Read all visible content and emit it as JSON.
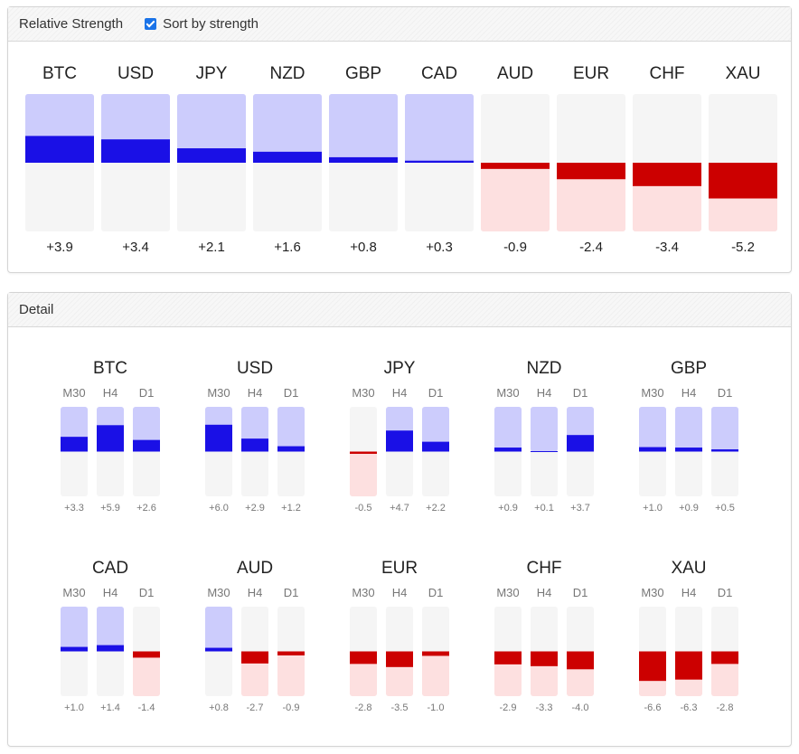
{
  "header": {
    "relative_strength_title": "Relative Strength",
    "sort_label": "Sort by strength",
    "sort_checked": true,
    "detail_title": "Detail"
  },
  "colors": {
    "positive_strong": "#1a10e6",
    "positive_light": "#ccccfc",
    "negative_strong": "#cc0000",
    "negative_light": "#fde0e0",
    "neutral": "#f5f5f5"
  },
  "chart_data": [
    {
      "type": "bar",
      "name": "relative-strength",
      "categories": [
        "BTC",
        "USD",
        "JPY",
        "NZD",
        "GBP",
        "CAD",
        "AUD",
        "EUR",
        "CHF",
        "XAU"
      ],
      "values": [
        3.9,
        3.4,
        2.1,
        1.6,
        0.8,
        0.3,
        -0.9,
        -2.4,
        -3.4,
        -5.2
      ],
      "value_labels": [
        "+3.9",
        "+3.4",
        "+2.1",
        "+1.6",
        "+0.8",
        "+0.3",
        "-0.9",
        "-2.4",
        "-3.4",
        "-5.2"
      ],
      "ylim": [
        -10,
        10
      ]
    },
    {
      "type": "bar",
      "name": "detail",
      "timeframes": [
        "M30",
        "H4",
        "D1"
      ],
      "ylim": [
        -10,
        10
      ],
      "groups": [
        {
          "currency": "BTC",
          "values": [
            3.3,
            5.9,
            2.6
          ],
          "labels": [
            "+3.3",
            "+5.9",
            "+2.6"
          ]
        },
        {
          "currency": "USD",
          "values": [
            6.0,
            2.9,
            1.2
          ],
          "labels": [
            "+6.0",
            "+2.9",
            "+1.2"
          ]
        },
        {
          "currency": "JPY",
          "values": [
            -0.5,
            4.7,
            2.2
          ],
          "labels": [
            "-0.5",
            "+4.7",
            "+2.2"
          ]
        },
        {
          "currency": "NZD",
          "values": [
            0.9,
            0.1,
            3.7
          ],
          "labels": [
            "+0.9",
            "+0.1",
            "+3.7"
          ]
        },
        {
          "currency": "GBP",
          "values": [
            1.0,
            0.9,
            0.5
          ],
          "labels": [
            "+1.0",
            "+0.9",
            "+0.5"
          ]
        },
        {
          "currency": "CAD",
          "values": [
            1.0,
            1.4,
            -1.4
          ],
          "labels": [
            "+1.0",
            "+1.4",
            "-1.4"
          ]
        },
        {
          "currency": "AUD",
          "values": [
            0.8,
            -2.7,
            -0.9
          ],
          "labels": [
            "+0.8",
            "-2.7",
            "-0.9"
          ]
        },
        {
          "currency": "EUR",
          "values": [
            -2.8,
            -3.5,
            -1.0
          ],
          "labels": [
            "-2.8",
            "-3.5",
            "-1.0"
          ]
        },
        {
          "currency": "CHF",
          "values": [
            -2.9,
            -3.3,
            -4.0
          ],
          "labels": [
            "-2.9",
            "-3.3",
            "-4.0"
          ]
        },
        {
          "currency": "XAU",
          "values": [
            -6.6,
            -6.3,
            -2.8
          ],
          "labels": [
            "-6.6",
            "-6.3",
            "-2.8"
          ]
        }
      ]
    }
  ]
}
